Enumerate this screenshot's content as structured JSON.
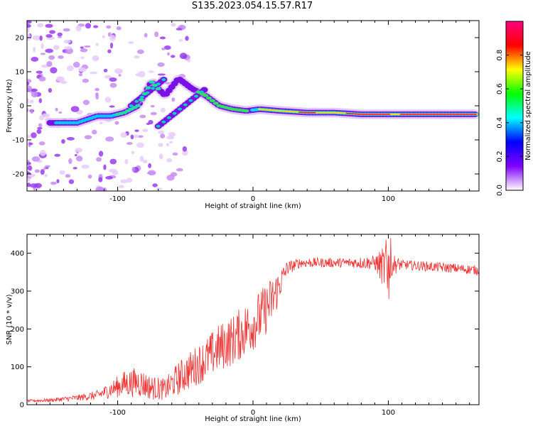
{
  "title": "S135.2023.054.15.57.R17",
  "chart_data": [
    {
      "type": "heatmap",
      "xlabel": "Height of straight line (km)",
      "ylabel": "Frequency (Hz)",
      "xlim": [
        -167,
        167
      ],
      "ylim": [
        -25,
        25
      ],
      "x_ticks": [
        -100,
        0,
        100
      ],
      "y_ticks": [
        -20,
        -10,
        0,
        10,
        20
      ],
      "colorbar": {
        "label": "Normalized spectral amplitude",
        "range": [
          0,
          1
        ],
        "ticks": [
          "0.0",
          "0.2",
          "0.4",
          "0.6",
          "0.8"
        ],
        "colors": [
          "#ffffff",
          "#8000ff",
          "#0000ff",
          "#00ffff",
          "#00ff00",
          "#ffff00",
          "#ff0000",
          "#ff0080"
        ]
      },
      "ridge": {
        "x": [
          -145,
          -130,
          -115,
          -105,
          -95,
          -85,
          -75,
          -65,
          -55,
          -45,
          -35,
          -25,
          -15,
          -5,
          5,
          20,
          40,
          60,
          80,
          100,
          130,
          165
        ],
        "frequency_hz": [
          -5,
          -5,
          -3,
          -3,
          -2,
          0,
          7,
          3,
          8,
          5,
          3,
          0,
          -1,
          -1.5,
          -1,
          -1.5,
          -2,
          -2,
          -2.5,
          -2.5,
          -2.5,
          -2.5
        ]
      },
      "branches": [
        {
          "x": [
            -70,
            -35
          ],
          "frequency_hz": [
            -6,
            5
          ]
        },
        {
          "x": [
            -90,
            -65
          ],
          "frequency_hz": [
            0,
            8
          ]
        }
      ]
    },
    {
      "type": "line",
      "xlabel": "Height of straight line (km)",
      "ylabel": "SNR (10 * v/v)",
      "xlim": [
        -167,
        167
      ],
      "ylim": [
        0,
        450
      ],
      "x_ticks": [
        -100,
        0,
        100
      ],
      "y_ticks": [
        0,
        100,
        200,
        300,
        400
      ],
      "series": [
        {
          "color": "#ee3333",
          "x": [
            -167,
            -150,
            -130,
            -115,
            -105,
            -95,
            -85,
            -75,
            -65,
            -55,
            -45,
            -35,
            -25,
            -15,
            -5,
            5,
            15,
            25,
            35,
            50,
            70,
            90,
            98,
            102,
            110,
            130,
            150,
            167
          ],
          "y": [
            10,
            12,
            18,
            25,
            40,
            55,
            60,
            45,
            40,
            70,
            95,
            120,
            150,
            170,
            200,
            230,
            280,
            360,
            375,
            375,
            375,
            375,
            360,
            370,
            370,
            365,
            360,
            355
          ],
          "noise": [
            2,
            3,
            5,
            8,
            14,
            22,
            25,
            20,
            18,
            28,
            32,
            35,
            40,
            42,
            45,
            45,
            40,
            12,
            8,
            8,
            8,
            12,
            40,
            20,
            8,
            8,
            8,
            8
          ]
        }
      ]
    }
  ]
}
